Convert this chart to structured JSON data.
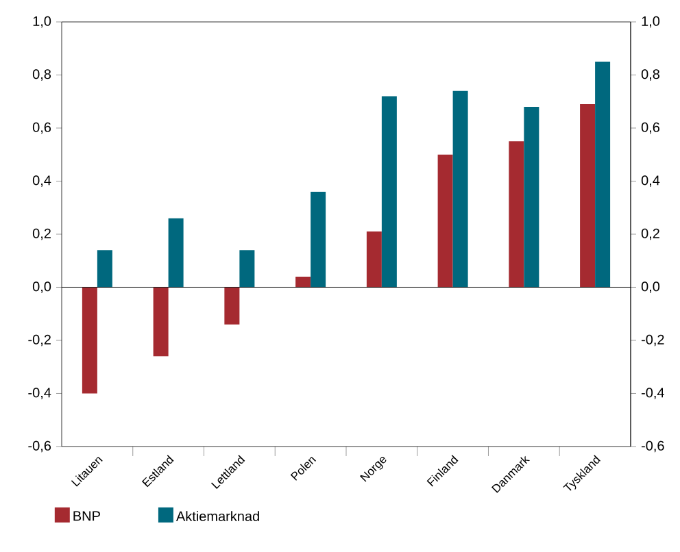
{
  "chart_data": {
    "type": "bar",
    "categories": [
      "Litauen",
      "Estland",
      "Lettland",
      "Polen",
      "Norge",
      "Finland",
      "Danmark",
      "Tyskland"
    ],
    "series": [
      {
        "name": "BNP",
        "color": "#a52a30",
        "values": [
          -0.4,
          -0.26,
          -0.14,
          0.04,
          0.21,
          0.5,
          0.55,
          0.69
        ]
      },
      {
        "name": "Aktiemarknad",
        "color": "#00687e",
        "values": [
          0.14,
          0.26,
          0.14,
          0.36,
          0.72,
          0.74,
          0.68,
          0.85
        ]
      }
    ],
    "ylim": [
      -0.6,
      1.0
    ],
    "yticks": [
      {
        "value": -0.6,
        "label": "-0,6"
      },
      {
        "value": -0.4,
        "label": "-0,4"
      },
      {
        "value": -0.2,
        "label": "-0,2"
      },
      {
        "value": 0,
        "label": "0,0"
      },
      {
        "value": 0.2,
        "label": "0,2"
      },
      {
        "value": 0.4,
        "label": "0,4"
      },
      {
        "value": 0.6,
        "label": "0,6"
      },
      {
        "value": 0.8,
        "label": "0,8"
      },
      {
        "value": 1.0,
        "label": "1,0"
      }
    ],
    "y2lim": [
      -0.6,
      1.0
    ],
    "y2ticks": [
      {
        "value": -0.6,
        "label": "-0,6"
      },
      {
        "value": -0.4,
        "label": "-0,4"
      },
      {
        "value": -0.2,
        "label": "-0,2"
      },
      {
        "value": 0,
        "label": "0,0"
      },
      {
        "value": 0.2,
        "label": "0,2"
      },
      {
        "value": 0.4,
        "label": "0,4"
      },
      {
        "value": 0.6,
        "label": "0,6"
      },
      {
        "value": 0.8,
        "label": "0,8"
      },
      {
        "value": 1.0,
        "label": "1,0"
      }
    ],
    "grid": false,
    "ref_lines": [
      {
        "axis": "y",
        "value": 0
      }
    ],
    "legend": "bottom"
  }
}
